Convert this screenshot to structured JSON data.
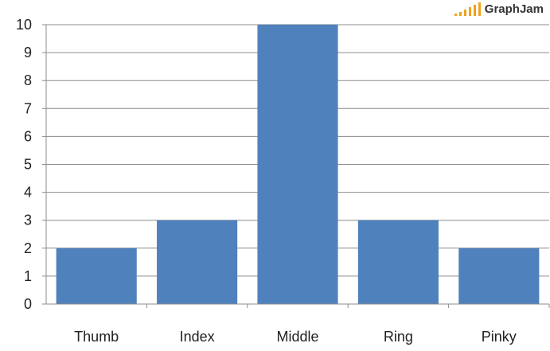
{
  "brand": {
    "name": "GraphJam",
    "icon": "ascending-bars-logo",
    "color": "#f0a21c"
  },
  "chart_data": {
    "type": "bar",
    "categories": [
      "Thumb",
      "Index",
      "Middle",
      "Ring",
      "Pinky"
    ],
    "values": [
      2,
      3,
      10,
      3,
      2
    ],
    "title": "",
    "xlabel": "",
    "ylabel": "",
    "ylim": [
      0,
      10
    ],
    "yticks": [
      0,
      1,
      2,
      3,
      4,
      5,
      6,
      7,
      8,
      9,
      10
    ],
    "grid": true,
    "legend": "none",
    "bar_color": "#4f81bd"
  }
}
